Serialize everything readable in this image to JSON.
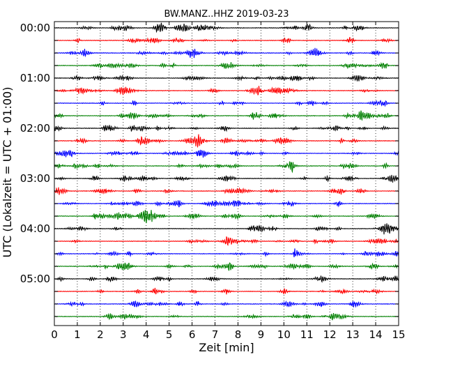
{
  "chart_data": {
    "type": "line",
    "title": "BW.MANZ..HHZ 2019-03-23",
    "xlabel": "Zeit  [min]",
    "ylabel": "UTC (Lokalzeit = UTC + 01:00)",
    "xlim": [
      0,
      15
    ],
    "x_ticks": [
      "0",
      "1",
      "2",
      "3",
      "4",
      "5",
      "6",
      "7",
      "8",
      "9",
      "10",
      "11",
      "12",
      "13",
      "14",
      "15"
    ],
    "y_tick_labels": [
      "00:00",
      "01:00",
      "02:00",
      "03:00",
      "04:00",
      "05:00"
    ],
    "rows_per_hour": 4,
    "row_count": 24,
    "row_colors": [
      "#000000",
      "#ff0000",
      "#0000ff",
      "#008000"
    ],
    "grid": "vertical dotted at each minute",
    "legend": "none",
    "series_description": "Seismogram traces, one per 15 minutes, colors cycling black, red, blue, green"
  }
}
